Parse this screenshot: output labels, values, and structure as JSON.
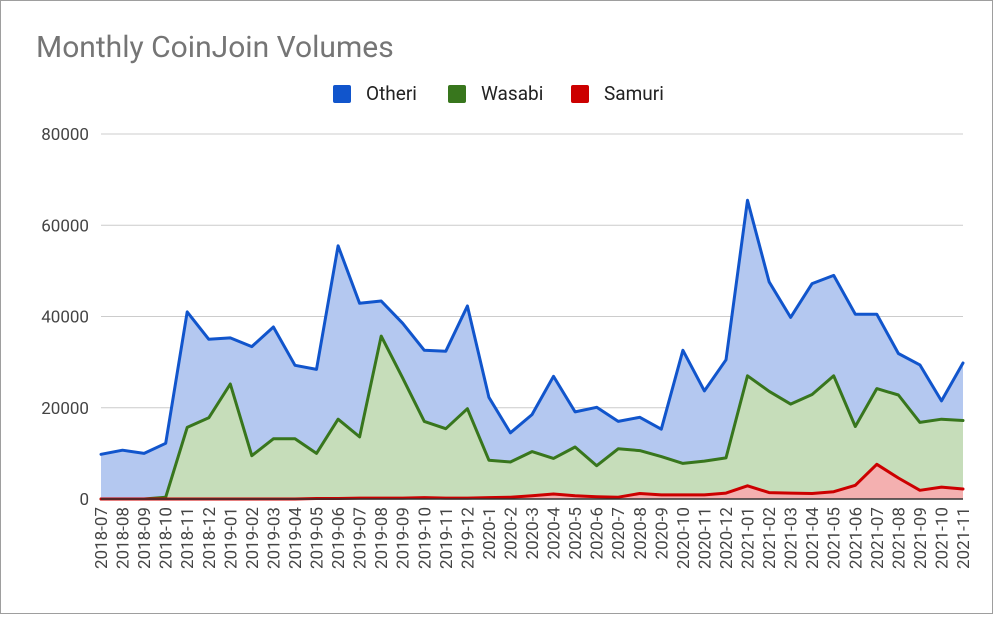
{
  "chart_data": {
    "type": "area",
    "title": "Monthly CoinJoin Volumes",
    "xlabel": "",
    "ylabel": "",
    "ylim": [
      0,
      80000
    ],
    "yticks": [
      0,
      20000,
      40000,
      60000,
      80000
    ],
    "legend_position": "top",
    "grid": true,
    "categories": [
      "2018-07",
      "2018-08",
      "2018-09",
      "2018-10",
      "2018-11",
      "2018-12",
      "2019-01",
      "2019-02",
      "2019-03",
      "2019-04",
      "2019-05",
      "2019-06",
      "2019-07",
      "2019-08",
      "2019-09",
      "2019-10",
      "2019-11",
      "2019-12",
      "2020-1",
      "2020-2",
      "2020-3",
      "2020-4",
      "2020-5",
      "2020-6",
      "2020-7",
      "2020-8",
      "2020-9",
      "2020-10",
      "2020-11",
      "2020-12",
      "2021-01",
      "2021-02",
      "2021-03",
      "2021-04",
      "2021-05",
      "2021-06",
      "2021-07",
      "2021-08",
      "2021-09",
      "2021-10",
      "2021-11"
    ],
    "series": [
      {
        "name": "Otheri",
        "color": "#1155CC",
        "fill": "#B4C8F0",
        "values": [
          9800,
          10700,
          10000,
          12200,
          41000,
          35000,
          35300,
          33400,
          37700,
          29300,
          28400,
          55500,
          42900,
          43400,
          38500,
          32600,
          32400,
          42300,
          22300,
          14500,
          18500,
          26900,
          19100,
          20100,
          17000,
          17900,
          15300,
          32600,
          23700,
          30500,
          65500,
          47600,
          39800,
          47200,
          49000,
          40500,
          40500,
          31900,
          29400,
          21500,
          29800
        ]
      },
      {
        "name": "Wasabi",
        "color": "#38761D",
        "fill": "#C6DDBA",
        "values": [
          0,
          0,
          0,
          400,
          15700,
          17800,
          25200,
          9500,
          13200,
          13200,
          10000,
          17500,
          13600,
          35700,
          26500,
          17000,
          15400,
          19800,
          8500,
          8100,
          10400,
          8900,
          11400,
          7300,
          11000,
          10600,
          9300,
          7800,
          8300,
          9000,
          27000,
          23600,
          20800,
          22900,
          27000,
          15900,
          24200,
          22800,
          16800,
          17500,
          17200
        ]
      },
      {
        "name": "Samuri",
        "color": "#CC0000",
        "fill": "#F4B0B0",
        "values": [
          0,
          0,
          0,
          0,
          0,
          0,
          0,
          0,
          0,
          0,
          100,
          100,
          200,
          200,
          200,
          300,
          200,
          200,
          300,
          400,
          700,
          1100,
          700,
          500,
          400,
          1200,
          900,
          900,
          900,
          1300,
          2900,
          1400,
          1300,
          1200,
          1600,
          3000,
          7600,
          4600,
          1900,
          2600,
          2200
        ]
      }
    ]
  }
}
